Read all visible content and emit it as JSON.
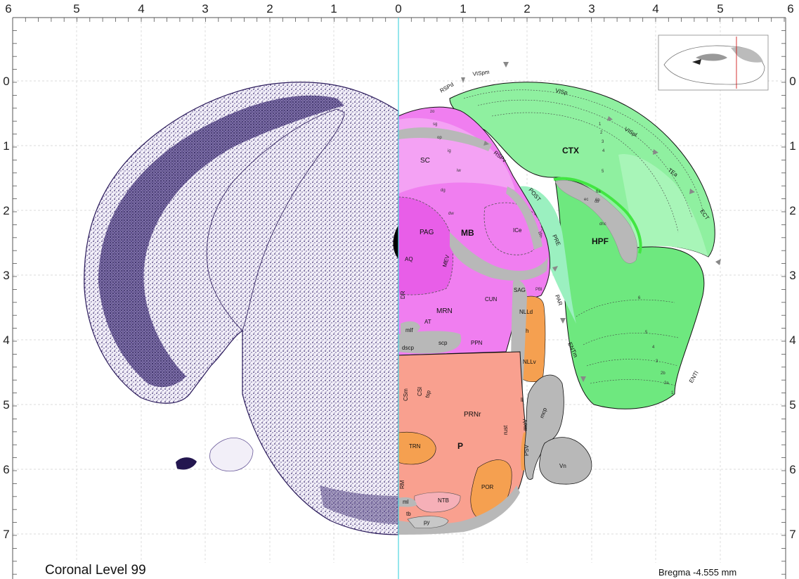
{
  "figure": {
    "title": "Coronal Level 99",
    "bregma": "Bregma -4.555 mm"
  },
  "axes": {
    "top_ticks": [
      "6",
      "5",
      "4",
      "3",
      "2",
      "1",
      "0",
      "1",
      "2",
      "3",
      "4",
      "5",
      "6"
    ],
    "side_ticks": [
      "0",
      "1",
      "2",
      "3",
      "4",
      "5",
      "6",
      "7"
    ]
  },
  "regions": {
    "major": [
      "CTX",
      "HPF",
      "MB",
      "P"
    ],
    "cortex": [
      "RSPd",
      "VISpm",
      "VISp",
      "VISpl",
      "TEa",
      "ECT",
      "RSPv",
      "POST",
      "PRE",
      "PAR",
      "ENTm",
      "ENTl"
    ],
    "layers": [
      "1",
      "2",
      "3",
      "4",
      "5",
      "6a",
      "6b",
      "6",
      "2a",
      "2b"
    ],
    "midbrain": [
      "SC",
      "zo",
      "sg",
      "op",
      "ig",
      "iw",
      "dg",
      "dw",
      "PAG",
      "ICe",
      "AQ",
      "MEV",
      "DR",
      "SAG",
      "PBl",
      "CUN",
      "MRN",
      "AT",
      "mlf",
      "PPN",
      "scp",
      "dscp",
      "bic",
      "NLLd",
      "h",
      "NLLv"
    ],
    "pons": [
      "PRNr",
      "CSm",
      "CSl",
      "tsp",
      "TRN",
      "RM",
      "NTB",
      "POR",
      "ml",
      "tb",
      "py",
      "rust",
      "moV",
      "PSV",
      "ll",
      "mcp",
      "Vn"
    ],
    "fiber": [
      "ec",
      "cb",
      "dhc"
    ]
  },
  "colors": {
    "cortex_green": "#8ff0a0",
    "cortex_light": "#a8f5b8",
    "hpf_green": "#6ee87f",
    "midbrain_magenta": "#f07ef0",
    "midbrain_dark": "#e85ee8",
    "pons_salmon": "#f9a08f",
    "orange_nuclei": "#f5a050",
    "fiber_gray": "#b8b8b8",
    "nissl": "#3a2a6e",
    "midline": "#4fd6e0"
  }
}
